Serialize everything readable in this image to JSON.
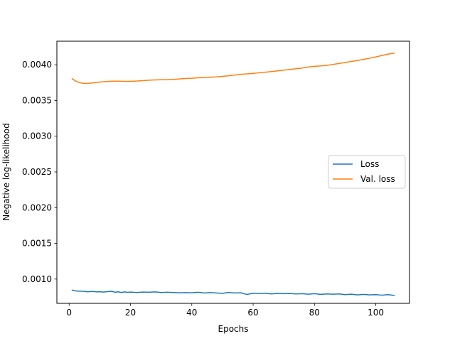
{
  "chart_data": {
    "type": "line",
    "title": "",
    "xlabel": "Epochs",
    "ylabel": "Negative log-likelihood",
    "xlim": [
      -4,
      111
    ],
    "ylim": [
      0.00066,
      0.00433
    ],
    "xticks": [
      0,
      20,
      40,
      60,
      80,
      100
    ],
    "xtick_labels": [
      "0",
      "20",
      "40",
      "60",
      "80",
      "100"
    ],
    "yticks": [
      0.001,
      0.0015,
      0.002,
      0.0025,
      0.003,
      0.0035,
      0.004
    ],
    "ytick_labels": [
      "0.0010",
      "0.0015",
      "0.0020",
      "0.0025",
      "0.0030",
      "0.0035",
      "0.0040"
    ],
    "grid": false,
    "legend_position": "center-right",
    "series": [
      {
        "name": "Loss",
        "color": "#1f77b4",
        "x": [
          1,
          2,
          3,
          4,
          5,
          6,
          7,
          8,
          9,
          10,
          11,
          12,
          13,
          14,
          15,
          16,
          17,
          18,
          19,
          20,
          22,
          24,
          26,
          28,
          30,
          32,
          34,
          36,
          38,
          40,
          42,
          44,
          46,
          48,
          50,
          52,
          54,
          56,
          57,
          58,
          60,
          62,
          64,
          66,
          68,
          70,
          72,
          74,
          76,
          78,
          80,
          82,
          84,
          86,
          88,
          90,
          92,
          94,
          96,
          98,
          100,
          102,
          104,
          106
        ],
        "y": [
          0.000845,
          0.000835,
          0.00083,
          0.00083,
          0.000828,
          0.000822,
          0.000825,
          0.000826,
          0.00082,
          0.000823,
          0.000818,
          0.000822,
          0.000826,
          0.000828,
          0.000815,
          0.000822,
          0.000812,
          0.00082,
          0.000814,
          0.000818,
          0.000812,
          0.000818,
          0.000815,
          0.00082,
          0.000812,
          0.000815,
          0.000812,
          0.000808,
          0.00081,
          0.000808,
          0.000815,
          0.000805,
          0.00081,
          0.000805,
          0.0008,
          0.000812,
          0.000805,
          0.000808,
          0.000795,
          0.000785,
          0.000802,
          0.000798,
          0.000802,
          0.000792,
          0.0008,
          0.000795,
          0.000798,
          0.000792,
          0.000795,
          0.000788,
          0.000795,
          0.000785,
          0.000792,
          0.000788,
          0.000792,
          0.000782,
          0.000788,
          0.000778,
          0.000785,
          0.000778,
          0.000782,
          0.000775,
          0.000782,
          0.000772
        ]
      },
      {
        "name": "Val. loss",
        "color": "#ff7f0e",
        "x": [
          1,
          2,
          3,
          4,
          5,
          6,
          8,
          10,
          12,
          14,
          16,
          18,
          20,
          22,
          24,
          26,
          28,
          30,
          32,
          34,
          36,
          38,
          40,
          42,
          44,
          46,
          48,
          50,
          52,
          54,
          56,
          58,
          60,
          62,
          64,
          66,
          68,
          70,
          72,
          74,
          76,
          78,
          80,
          82,
          84,
          86,
          88,
          90,
          92,
          94,
          96,
          98,
          100,
          102,
          104,
          106
        ],
        "y": [
          0.003805,
          0.003775,
          0.003755,
          0.003745,
          0.00374,
          0.00374,
          0.003748,
          0.003758,
          0.003766,
          0.00377,
          0.00377,
          0.003768,
          0.003768,
          0.003772,
          0.003778,
          0.003784,
          0.003788,
          0.00379,
          0.003792,
          0.003796,
          0.003802,
          0.003808,
          0.003812,
          0.003818,
          0.003822,
          0.003826,
          0.00383,
          0.003838,
          0.003846,
          0.003856,
          0.003866,
          0.003872,
          0.00388,
          0.003888,
          0.003896,
          0.003905,
          0.003915,
          0.003925,
          0.003935,
          0.003945,
          0.003955,
          0.003968,
          0.003978,
          0.003984,
          0.003992,
          0.004005,
          0.004018,
          0.004032,
          0.004046,
          0.00406,
          0.004075,
          0.004092,
          0.00411,
          0.00413,
          0.00415,
          0.004162
        ]
      }
    ]
  }
}
